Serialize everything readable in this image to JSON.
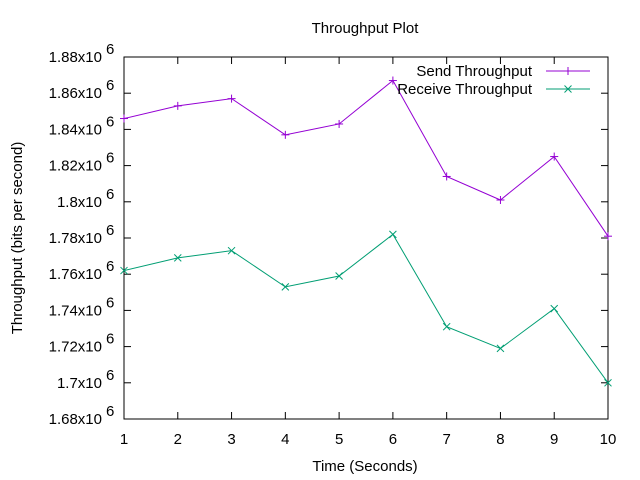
{
  "chart_data": {
    "type": "line",
    "title": "Throughput Plot",
    "xlabel": "Time (Seconds)",
    "ylabel": "Throughput (bits per second)",
    "x": [
      1,
      2,
      3,
      4,
      5,
      6,
      7,
      8,
      9,
      10
    ],
    "xlim": [
      1,
      10
    ],
    "ylim": [
      1680000,
      1880000
    ],
    "x_ticks": [
      1,
      2,
      3,
      4,
      5,
      6,
      7,
      8,
      9,
      10
    ],
    "y_ticks": [
      1680000,
      1700000,
      1720000,
      1740000,
      1760000,
      1780000,
      1800000,
      1820000,
      1840000,
      1860000,
      1880000
    ],
    "y_tick_labels": [
      {
        "mantissa": "1.68x10",
        "exp": "6"
      },
      {
        "mantissa": "1.7x10",
        "exp": "6"
      },
      {
        "mantissa": "1.72x10",
        "exp": "6"
      },
      {
        "mantissa": "1.74x10",
        "exp": "6"
      },
      {
        "mantissa": "1.76x10",
        "exp": "6"
      },
      {
        "mantissa": "1.78x10",
        "exp": "6"
      },
      {
        "mantissa": "1.8x10",
        "exp": "6"
      },
      {
        "mantissa": "1.82x10",
        "exp": "6"
      },
      {
        "mantissa": "1.84x10",
        "exp": "6"
      },
      {
        "mantissa": "1.86x10",
        "exp": "6"
      },
      {
        "mantissa": "1.88x10",
        "exp": "6"
      }
    ],
    "grid": false,
    "legend_position": "top-right",
    "series": [
      {
        "name": "Send Throughput",
        "color": "#9400d3",
        "marker": "plus",
        "values": [
          1846000,
          1853000,
          1857000,
          1837000,
          1843000,
          1867000,
          1814000,
          1801000,
          1825000,
          1781000
        ]
      },
      {
        "name": "Receive Throughput",
        "color": "#009e73",
        "marker": "cross",
        "values": [
          1762000,
          1769000,
          1773000,
          1753000,
          1759000,
          1782000,
          1731000,
          1719000,
          1741000,
          1700000
        ]
      }
    ]
  }
}
